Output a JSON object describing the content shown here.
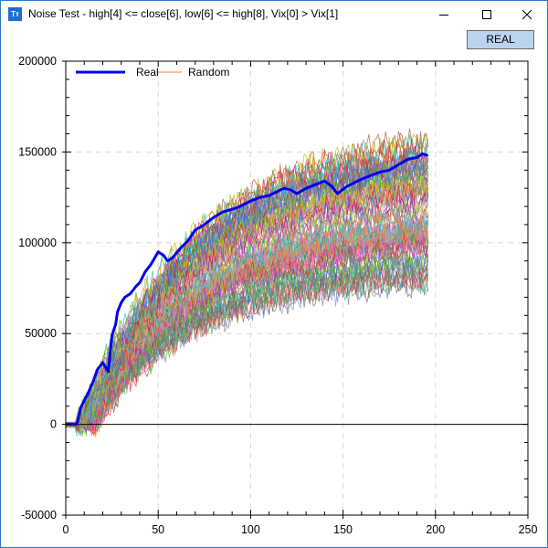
{
  "window": {
    "title": "Noise Test - high[4] <= close[6], low[6] <= high[8], Vix[0] > Vix[1]",
    "app_icon": "Tт",
    "minimize_icon": "minimize-icon",
    "maximize_icon": "maximize-icon",
    "close_icon": "close-icon"
  },
  "toolbar": {
    "real_button_label": "REAL"
  },
  "colors": {
    "real": "#0000ee",
    "random": "#f08040",
    "axis": "#000000",
    "grid": "#d8d8d8",
    "button_bg": "#bcd3ee",
    "window_border": "#2b79c9"
  },
  "chart_data": {
    "type": "line",
    "title": "Noise Test - high[4] <= close[6], low[6] <= high[8], Vix[0] > Vix[1]",
    "xlabel": "",
    "ylabel": "",
    "xlim": [
      0,
      250
    ],
    "ylim": [
      -50000,
      200000
    ],
    "x_ticks": [
      0,
      50,
      100,
      150,
      200,
      250
    ],
    "x_tick_labels": [
      "0",
      "50",
      "100",
      "150",
      "200",
      "250"
    ],
    "y_ticks": [
      -50000,
      0,
      50000,
      100000,
      150000,
      200000
    ],
    "y_tick_labels": [
      "-50000",
      "0",
      "50000",
      "100000",
      "150000",
      "200000"
    ],
    "grid": true,
    "legend": {
      "position": "top-left",
      "entries": [
        "Real",
        "Random"
      ]
    },
    "series": [
      {
        "name": "Real",
        "color": "#0000ee",
        "line_width": 3,
        "x": [
          0,
          6,
          8,
          10,
          12,
          15,
          17,
          20,
          23,
          25,
          27,
          28,
          30,
          32,
          35,
          38,
          40,
          43,
          46,
          50,
          53,
          55,
          58,
          62,
          66,
          70,
          75,
          80,
          85,
          92,
          96,
          100,
          105,
          110,
          114,
          118,
          122,
          125,
          130,
          135,
          140,
          144,
          147,
          152,
          156,
          160,
          165,
          170,
          175,
          180,
          185,
          190,
          193,
          196
        ],
        "values": [
          0,
          0,
          9000,
          13000,
          17000,
          24000,
          30000,
          34000,
          29000,
          49000,
          55000,
          62000,
          67000,
          70000,
          72000,
          76000,
          78000,
          84000,
          88000,
          95000,
          93000,
          90000,
          92000,
          97000,
          101000,
          107000,
          110000,
          114000,
          117000,
          119000,
          121000,
          123000,
          125000,
          126000,
          128000,
          130000,
          129000,
          127000,
          130000,
          132000,
          134000,
          131000,
          127000,
          131000,
          133000,
          135000,
          137000,
          139000,
          140000,
          143000,
          146000,
          147000,
          149000,
          148000
        ]
      },
      {
        "name": "Random",
        "color": "multi",
        "line_width": 1,
        "count": 100,
        "length": 197,
        "final_value_range": [
          78000,
          157000
        ],
        "min_value_approx": -7000,
        "description": "~100 randomized equity curves starting at 0, rising to between ~78000 and ~157000 at x=196"
      }
    ]
  }
}
